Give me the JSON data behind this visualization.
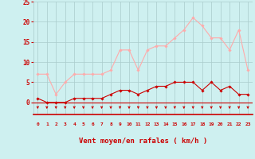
{
  "hours": [
    0,
    1,
    2,
    3,
    4,
    5,
    6,
    7,
    8,
    9,
    10,
    11,
    12,
    13,
    14,
    15,
    16,
    17,
    18,
    19,
    20,
    21,
    22,
    23
  ],
  "rafales": [
    7,
    7,
    2,
    5,
    7,
    7,
    7,
    7,
    8,
    13,
    13,
    8,
    13,
    14,
    14,
    16,
    18,
    21,
    19,
    16,
    16,
    13,
    18,
    8
  ],
  "moyenne": [
    1,
    0,
    0,
    0,
    1,
    1,
    1,
    1,
    2,
    3,
    3,
    2,
    3,
    4,
    4,
    5,
    5,
    5,
    3,
    5,
    3,
    4,
    2,
    2
  ],
  "bg_color": "#cef0f0",
  "grid_color": "#aacccc",
  "line_color_rafales": "#ffaaaa",
  "line_color_moyenne": "#cc0000",
  "arrow_color": "#cc0000",
  "xlabel": "Vent moyen/en rafales ( km/h )",
  "ylim": [
    -3,
    25
  ],
  "yticks": [
    0,
    5,
    10,
    15,
    20,
    25
  ],
  "xlabel_color": "#cc0000",
  "tick_color": "#cc0000",
  "ytick_color": "#cc0000"
}
